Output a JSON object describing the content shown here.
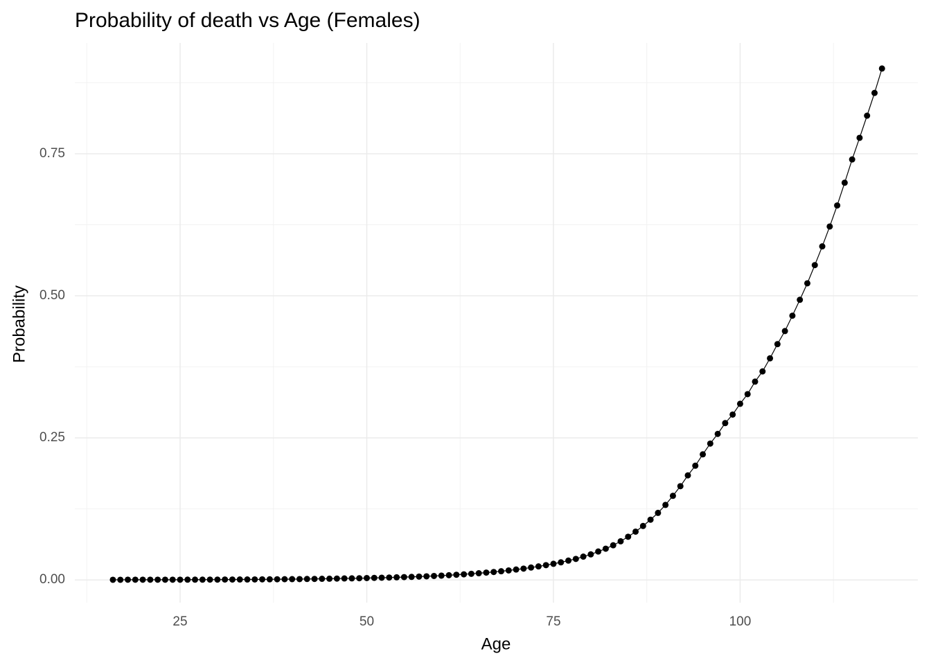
{
  "chart_data": {
    "type": "line",
    "title": "Probability of death vs Age (Females)",
    "x_label": "Age",
    "y_label": "Probability",
    "x": [
      16,
      17,
      18,
      19,
      20,
      21,
      22,
      23,
      24,
      25,
      26,
      27,
      28,
      29,
      30,
      31,
      32,
      33,
      34,
      35,
      36,
      37,
      38,
      39,
      40,
      41,
      42,
      43,
      44,
      45,
      46,
      47,
      48,
      49,
      50,
      51,
      52,
      53,
      54,
      55,
      56,
      57,
      58,
      59,
      60,
      61,
      62,
      63,
      64,
      65,
      66,
      67,
      68,
      69,
      70,
      71,
      72,
      73,
      74,
      75,
      76,
      77,
      78,
      79,
      80,
      81,
      82,
      83,
      84,
      85,
      86,
      87,
      88,
      89,
      90,
      91,
      92,
      93,
      94,
      95,
      96,
      97,
      98,
      99,
      100,
      101,
      102,
      103,
      104,
      105,
      106,
      107,
      108,
      109,
      110,
      111,
      112,
      113,
      114,
      115,
      116,
      117,
      118,
      119
    ],
    "series": [
      {
        "name": "Probability",
        "color": "#000000",
        "values": [
          0.0003,
          0.0003,
          0.0004,
          0.0004,
          0.0004,
          0.0004,
          0.0004,
          0.0004,
          0.0004,
          0.0004,
          0.0005,
          0.0005,
          0.0005,
          0.0006,
          0.0006,
          0.0007,
          0.0007,
          0.0008,
          0.0008,
          0.0009,
          0.001,
          0.0011,
          0.0012,
          0.0013,
          0.0014,
          0.0015,
          0.0017,
          0.0018,
          0.002,
          0.0022,
          0.0024,
          0.0026,
          0.0028,
          0.003,
          0.0033,
          0.0036,
          0.0039,
          0.0042,
          0.0046,
          0.005,
          0.0054,
          0.0059,
          0.0064,
          0.007,
          0.0076,
          0.0083,
          0.0091,
          0.0099,
          0.0108,
          0.0118,
          0.0129,
          0.014,
          0.0153,
          0.0167,
          0.0183,
          0.0199,
          0.0218,
          0.0238,
          0.026,
          0.0284,
          0.031,
          0.034,
          0.037,
          0.041,
          0.045,
          0.05,
          0.055,
          0.061,
          0.068,
          0.076,
          0.085,
          0.095,
          0.106,
          0.118,
          0.132,
          0.148,
          0.165,
          0.184,
          0.201,
          0.221,
          0.24,
          0.257,
          0.276,
          0.291,
          0.31,
          0.327,
          0.349,
          0.367,
          0.39,
          0.415,
          0.438,
          0.465,
          0.493,
          0.522,
          0.554,
          0.587,
          0.622,
          0.659,
          0.699,
          0.74,
          0.778,
          0.817,
          0.857,
          0.9
        ]
      }
    ],
    "xlim": [
      10.9,
      123.8
    ],
    "ylim": [
      -0.04,
      0.945
    ],
    "xticks": [
      25,
      50,
      75,
      100
    ],
    "yticks": [
      {
        "value": 0,
        "label": "0.00"
      },
      0.25,
      {
        "value": 0.5,
        "label": "0.50"
      },
      0.75
    ],
    "grid": true
  }
}
